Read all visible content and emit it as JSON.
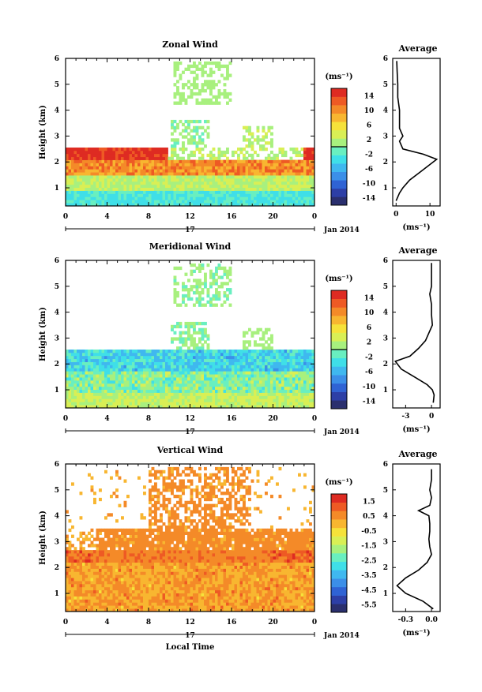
{
  "panels": [
    {
      "title": "Zonal Wind",
      "ylabel": "Height (km)",
      "xticks": [
        "0",
        "4",
        "8",
        "12",
        "16",
        "20",
        "0"
      ],
      "day_label": "17",
      "month_label": "Jan 2014",
      "cbar_unit": "(ms⁻¹)",
      "cbar_ticks": [
        "14",
        "10",
        "6",
        "2",
        "-2",
        "-6",
        "-10",
        "-14"
      ],
      "cbar_range": [
        -16,
        16
      ],
      "avg_title": "Average",
      "avg_xlabel": "(ms⁻¹)",
      "avg_xticks": [
        "0",
        "10"
      ],
      "avg_xlim": [
        -1,
        13
      ]
    },
    {
      "title": "Meridional Wind",
      "ylabel": "Height (km)",
      "xticks": [
        "0",
        "4",
        "8",
        "12",
        "16",
        "20",
        "0"
      ],
      "day_label": "17",
      "month_label": "Jan 2014",
      "cbar_unit": "(ms⁻¹)",
      "cbar_ticks": [
        "14",
        "10",
        "6",
        "2",
        "-2",
        "-6",
        "-10",
        "-14"
      ],
      "cbar_range": [
        -16,
        16
      ],
      "avg_title": "Average",
      "avg_xlabel": "(ms⁻¹)",
      "avg_xticks": [
        "-3",
        "0"
      ],
      "avg_xlim": [
        -4.5,
        1
      ]
    },
    {
      "title": "Vertical Wind",
      "ylabel": "Height (km)",
      "xlabel": "Local Time",
      "xticks": [
        "0",
        "4",
        "8",
        "12",
        "16",
        "20",
        "0"
      ],
      "day_label": "17",
      "month_label": "Jan 2014",
      "cbar_unit": "(ms⁻¹)",
      "cbar_ticks": [
        "1.5",
        "0.5",
        "-0.5",
        "-1.5",
        "-2.5",
        "-3.5",
        "-4.5",
        "-5.5"
      ],
      "cbar_range": [
        -6,
        2
      ],
      "avg_title": "Average",
      "avg_xlabel": "(ms⁻¹)",
      "avg_xticks": [
        "-0.3",
        "0.0"
      ],
      "avg_xlim": [
        -0.45,
        0.1
      ]
    }
  ],
  "chart_data": [
    {
      "type": "heatmap",
      "title": "Zonal Wind",
      "xlabel": "",
      "ylabel": "Height (km)",
      "x_range_hours": [
        0,
        24
      ],
      "ylim_km": [
        0.3,
        6
      ],
      "unit": "ms-1",
      "yticks": [
        1,
        2,
        3,
        4,
        5,
        6
      ],
      "profile": {
        "title": "Average",
        "height_km": [
          0.5,
          0.8,
          1.0,
          1.3,
          1.6,
          1.9,
          2.1,
          2.3,
          2.5,
          2.8,
          3.0,
          3.3,
          3.6,
          4.0,
          4.5,
          5.0,
          5.5,
          5.9
        ],
        "value": [
          0,
          1,
          2,
          4,
          7,
          10,
          12,
          8,
          2,
          1,
          2,
          1,
          1,
          1,
          0.5,
          0.5,
          0.3,
          0.2
        ]
      }
    },
    {
      "type": "heatmap",
      "title": "Meridional Wind",
      "xlabel": "",
      "ylabel": "Height (km)",
      "x_range_hours": [
        0,
        24
      ],
      "ylim_km": [
        0.3,
        6
      ],
      "unit": "ms-1",
      "yticks": [
        1,
        2,
        3,
        4,
        5,
        6
      ],
      "profile": {
        "title": "Average",
        "height_km": [
          0.5,
          0.8,
          1.0,
          1.2,
          1.5,
          1.8,
          2.1,
          2.3,
          2.6,
          2.9,
          3.2,
          3.5,
          3.9,
          4.3,
          4.7,
          5.0,
          5.5,
          5.9
        ],
        "value": [
          0.2,
          0.3,
          0.1,
          -0.5,
          -2.0,
          -3.5,
          -4.2,
          -2.5,
          -1.5,
          -0.7,
          -0.3,
          0.1,
          0,
          0,
          -0.2,
          0,
          0,
          0
        ]
      }
    },
    {
      "type": "heatmap",
      "title": "Vertical Wind",
      "xlabel": "Local Time",
      "ylabel": "Height (km)",
      "x_range_hours": [
        0,
        24
      ],
      "ylim_km": [
        0.3,
        6
      ],
      "unit": "ms-1",
      "yticks": [
        1,
        2,
        3,
        4,
        5,
        6
      ],
      "profile": {
        "title": "Average",
        "height_km": [
          0.4,
          0.7,
          1.0,
          1.3,
          1.6,
          1.9,
          2.2,
          2.5,
          2.8,
          3.1,
          3.4,
          3.7,
          4.0,
          4.2,
          4.4,
          4.7,
          5.0,
          5.4,
          5.8
        ],
        "value": [
          0.02,
          -0.1,
          -0.3,
          -0.4,
          -0.3,
          -0.15,
          -0.05,
          0.0,
          -0.02,
          -0.03,
          -0.02,
          -0.02,
          -0.03,
          -0.15,
          -0.02,
          0.0,
          -0.02,
          0.0,
          0.0
        ]
      }
    }
  ]
}
